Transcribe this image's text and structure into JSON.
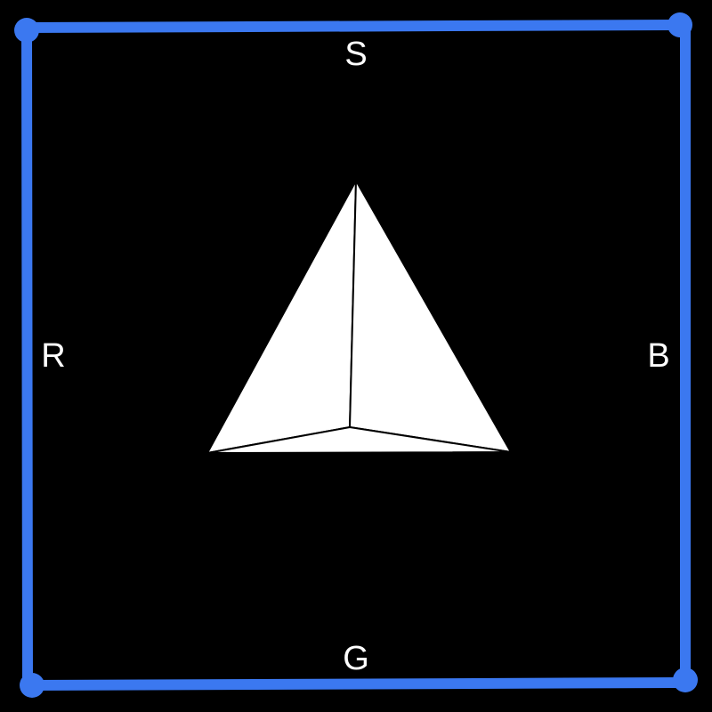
{
  "labels": {
    "top": "S",
    "bottom": "G",
    "left": "R",
    "right": "B"
  },
  "colors": {
    "background": "#000000",
    "frame": "#3b78f0",
    "shape_fill": "#ffffff",
    "shape_edge": "#000000",
    "label_text": "#ffffff"
  },
  "icons": {
    "frame_corners": [
      "corner-handle-icon",
      "corner-handle-icon",
      "corner-handle-icon",
      "corner-handle-icon"
    ],
    "center_object": "tetrahedron-icon"
  }
}
